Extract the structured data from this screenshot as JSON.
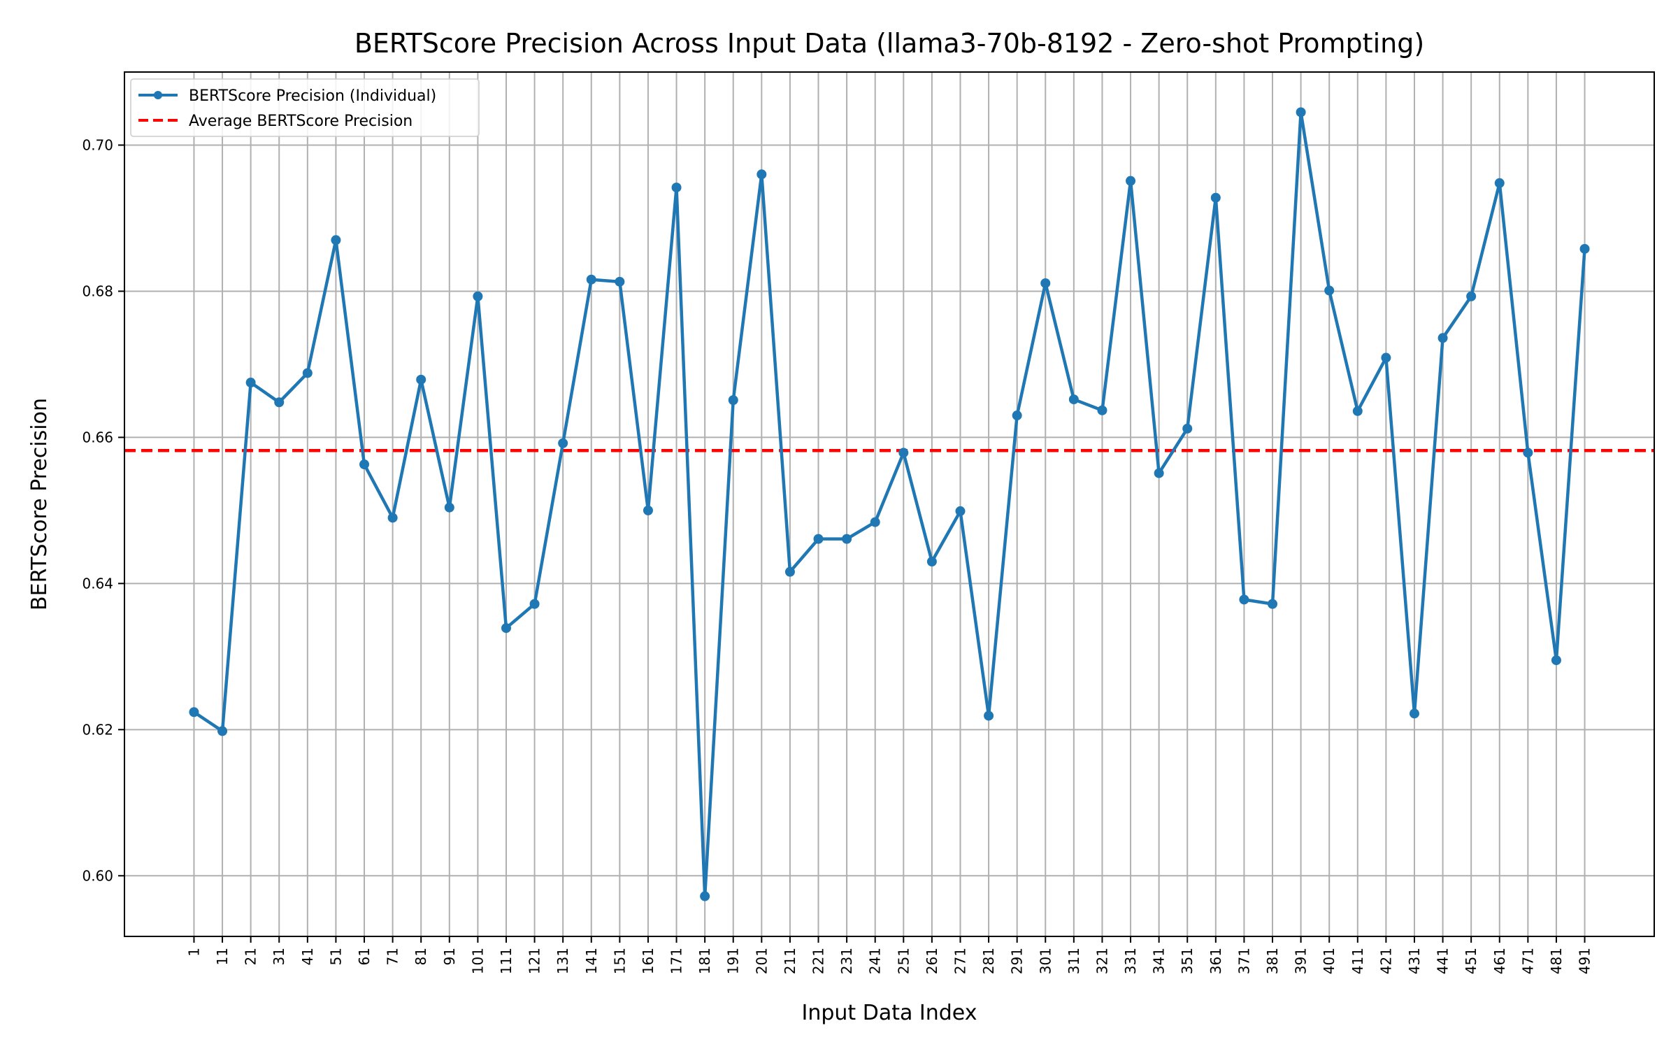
{
  "chart_data": {
    "type": "line",
    "title": "BERTScore Precision Across Input Data (llama3-70b-8192 - Zero-shot Prompting)",
    "xlabel": "Input Data Index",
    "ylabel": "BERTScore Precision",
    "x": [
      1,
      11,
      21,
      31,
      41,
      51,
      61,
      71,
      81,
      91,
      101,
      111,
      121,
      131,
      141,
      151,
      161,
      171,
      181,
      191,
      201,
      211,
      221,
      231,
      241,
      251,
      261,
      271,
      281,
      291,
      301,
      311,
      321,
      331,
      341,
      351,
      361,
      371,
      381,
      391,
      401,
      411,
      421,
      431,
      441,
      451,
      461,
      471,
      481,
      491
    ],
    "x_tick_labels": [
      "1",
      "11",
      "21",
      "31",
      "41",
      "51",
      "61",
      "71",
      "81",
      "91",
      "101",
      "111",
      "121",
      "131",
      "141",
      "151",
      "161",
      "171",
      "181",
      "191",
      "201",
      "211",
      "221",
      "231",
      "241",
      "251",
      "261",
      "271",
      "281",
      "291",
      "301",
      "311",
      "321",
      "331",
      "341",
      "351",
      "361",
      "371",
      "381",
      "391",
      "401",
      "411",
      "421",
      "431",
      "441",
      "451",
      "461",
      "471",
      "481",
      "491"
    ],
    "series": [
      {
        "name": "BERTScore Precision (Individual)",
        "color": "#1f77b4",
        "style": "solid-with-markers",
        "values": [
          0.6224,
          0.6198,
          0.6675,
          0.6648,
          0.6688,
          0.687,
          0.6563,
          0.649,
          0.6679,
          0.6504,
          0.6793,
          0.6339,
          0.6372,
          0.6592,
          0.6816,
          0.6813,
          0.65,
          0.6942,
          0.5972,
          0.6651,
          0.696,
          0.6416,
          0.6461,
          0.6461,
          0.6484,
          0.6579,
          0.643,
          0.6499,
          0.6219,
          0.663,
          0.6811,
          0.6652,
          0.6637,
          0.6951,
          0.6551,
          0.6612,
          0.6928,
          0.6378,
          0.6372,
          0.7045,
          0.6801,
          0.6636,
          0.6709,
          0.6222,
          0.6736,
          0.6793,
          0.6948,
          0.6579,
          0.6295,
          0.6858
        ]
      },
      {
        "name": "Average BERTScore Precision",
        "color": "#ff0000",
        "style": "dashed",
        "value": 0.6582
      }
    ],
    "y_ticks": [
      0.6,
      0.62,
      0.64,
      0.66,
      0.68,
      0.7
    ],
    "y_tick_labels": [
      "0.60",
      "0.62",
      "0.64",
      "0.66",
      "0.68",
      "0.70"
    ],
    "xlim": [
      -23.5,
      515.5
    ],
    "ylim": [
      0.5917,
      0.71
    ],
    "grid": true,
    "legend_position": "top-left"
  }
}
